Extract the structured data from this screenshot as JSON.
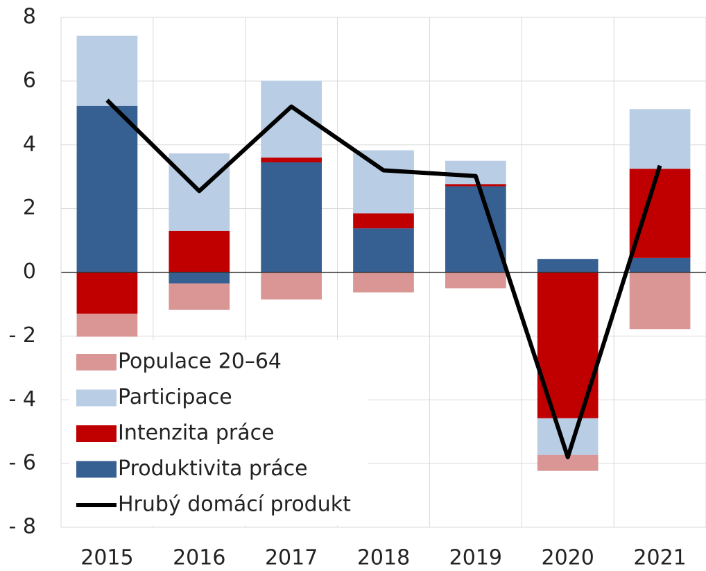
{
  "chart_data": {
    "type": "bar",
    "categories": [
      "2015",
      "2016",
      "2017",
      "2018",
      "2019",
      "2020",
      "2021"
    ],
    "series": [
      {
        "name": "Populace 20–64",
        "color": "#d99694",
        "values": [
          -0.72,
          -0.83,
          -0.85,
          -0.63,
          -0.5,
          -0.5,
          -1.78
        ]
      },
      {
        "name": "Participace",
        "color": "#b9cde5",
        "values": [
          2.2,
          2.43,
          2.41,
          1.98,
          0.73,
          -1.15,
          1.87
        ]
      },
      {
        "name": "Intenzita práce",
        "color": "#c00000",
        "values": [
          -1.3,
          1.3,
          0.15,
          0.47,
          0.07,
          -4.58,
          2.8
        ]
      },
      {
        "name": "Produktivita práce",
        "color": "#376092",
        "values": [
          5.22,
          -0.35,
          3.45,
          1.38,
          2.7,
          0.42,
          0.45
        ]
      },
      {
        "name": "Hrubý domácí produkt",
        "color": "#000000",
        "type": "line",
        "values": [
          5.4,
          2.55,
          5.2,
          3.2,
          3.02,
          -5.8,
          3.35
        ]
      }
    ],
    "stacked": true,
    "ylim": [
      -8,
      8
    ],
    "yticks": [
      {
        "value": -8,
        "label": "- 8"
      },
      {
        "value": -6,
        "label": "- 6"
      },
      {
        "value": -4,
        "label": "- 4"
      },
      {
        "value": -2,
        "label": "- 2"
      },
      0,
      2,
      4,
      6,
      8
    ],
    "grid": true,
    "legend": "lower left"
  }
}
